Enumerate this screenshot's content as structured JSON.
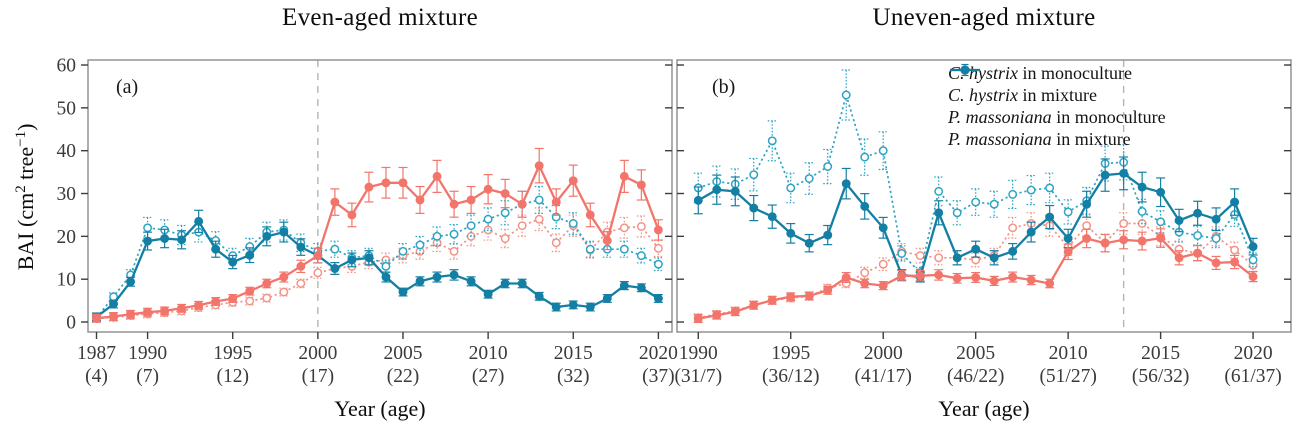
{
  "header": {
    "panel_a_title": "Even-aged mixture",
    "panel_b_title": "Uneven-aged mixture"
  },
  "axes": {
    "ylabel_pre": "BAI (cm",
    "ylabel_sup1": "2",
    "ylabel_mid": " tree",
    "ylabel_sup2": "−1",
    "ylabel_post": ")",
    "xlabel_a": "Year (age)",
    "xlabel_b": "Year (age)",
    "y_ticks": [
      0,
      10,
      20,
      30,
      40,
      50,
      60
    ]
  },
  "legend": {
    "entries": [
      {
        "species": "C. hystrix",
        "context": " in monoculture",
        "variant": "open-dotted",
        "color": "#f29388"
      },
      {
        "species": "C. hystrix",
        "context": " in mixture",
        "variant": "filled-solid",
        "color": "#f2756b"
      },
      {
        "species": "P. massoniana",
        "context": " in monoculture",
        "variant": "open-dotted",
        "color": "#2da4c4"
      },
      {
        "species": "P. massoniana",
        "context": " in mixture",
        "variant": "filled-solid",
        "color": "#147fa4"
      }
    ]
  },
  "style": {
    "frame_color": "#8c8c8c",
    "tick_color": "#3c3c3c",
    "tick_label_color": "#3b3b3b",
    "dashed_line_color": "#b4b4b4"
  },
  "chart_data": [
    {
      "type": "line",
      "panel": "a",
      "panel_label": "(a)",
      "title": "Even-aged mixture",
      "xlabel": "Year (age)",
      "ylabel": "BAI (cm2 tree-1)",
      "xlim": [
        1986.5,
        2020.8
      ],
      "ylim": [
        -2.33,
        61.17
      ],
      "grid": false,
      "x_start": 1987,
      "dashed_vline_year": 2000,
      "error_bar": {
        "scale": 0.11,
        "min": 0.9
      },
      "x_ticks": [
        {
          "year": 1987,
          "label": "1987",
          "age": "(4)"
        },
        {
          "year": 1990,
          "label": "1990",
          "age": "(7)"
        },
        {
          "year": 1995,
          "label": "1995",
          "age": "(12)"
        },
        {
          "year": 2000,
          "label": "2000",
          "age": "(17)"
        },
        {
          "year": 2005,
          "label": "2005",
          "age": "(22)"
        },
        {
          "year": 2010,
          "label": "2010",
          "age": "(27)"
        },
        {
          "year": 2015,
          "label": "2015",
          "age": "(32)"
        },
        {
          "year": 2020,
          "label": "2020",
          "age": "(37)"
        }
      ],
      "series": [
        {
          "name": "C. hystrix in monoculture",
          "style": "dotted",
          "marker": "open",
          "color": "#f29388",
          "values": [
            0.8,
            1.1,
            1.5,
            1.9,
            2.2,
            2.6,
            3.4,
            4.0,
            4.6,
            4.9,
            5.6,
            7.0,
            9.0,
            11.5,
            12.5,
            13.0,
            14.0,
            14.5,
            15.5,
            16.5,
            18.5,
            16.5,
            20.0,
            21.5,
            19.5,
            22.5,
            24.0,
            18.5,
            22.5,
            16.8,
            21.0,
            22.0,
            22.3,
            17.2
          ]
        },
        {
          "name": "P. massoniana in monoculture",
          "style": "dotted",
          "marker": "open",
          "color": "#2da4c4",
          "values": [
            1.0,
            5.9,
            11.0,
            22.0,
            21.5,
            20.3,
            21.0,
            19.0,
            15.5,
            17.6,
            21.0,
            21.5,
            18.5,
            16.5,
            17.0,
            15.0,
            15.5,
            13.0,
            16.5,
            18.0,
            20.0,
            20.5,
            22.5,
            24.0,
            25.5,
            27.5,
            28.5,
            24.5,
            23.0,
            17.0,
            17.0,
            17.0,
            15.5,
            13.5
          ]
        },
        {
          "name": "P. massoniana in mixture",
          "style": "solid",
          "marker": "filled",
          "color": "#147fa4",
          "values": [
            1.2,
            4.2,
            9.4,
            18.9,
            19.5,
            19.2,
            23.5,
            17.0,
            14.0,
            15.6,
            20.0,
            21.0,
            17.5,
            15.5,
            12.5,
            14.5,
            15.0,
            10.5,
            7.0,
            9.5,
            10.5,
            11.0,
            9.5,
            6.5,
            9.0,
            9.0,
            6.0,
            3.5,
            4.0,
            3.5,
            5.5,
            8.5,
            8.0,
            5.5
          ]
        },
        {
          "name": "C. hystrix in mixture",
          "style": "solid",
          "marker": "filled",
          "color": "#f2756b",
          "values": [
            0.9,
            1.3,
            1.8,
            2.3,
            2.6,
            3.2,
            3.9,
            4.8,
            5.5,
            7.2,
            9.0,
            10.5,
            13.0,
            15.5,
            28.0,
            25.0,
            31.5,
            32.5,
            32.5,
            28.5,
            34.0,
            27.5,
            28.5,
            31.0,
            30.0,
            27.5,
            36.5,
            28.0,
            33.0,
            25.0,
            19.0,
            34.0,
            32.0,
            21.5
          ]
        }
      ]
    },
    {
      "type": "line",
      "panel": "b",
      "panel_label": "(b)",
      "title": "Uneven-aged mixture",
      "xlabel": "Year (age)",
      "ylabel": "BAI (cm2 tree-1)",
      "xlim": [
        1988.85,
        2022.05
      ],
      "ylim": [
        -2.33,
        61.17
      ],
      "grid": false,
      "x_start": 1990,
      "dashed_vline_year": 2013,
      "error_bar": {
        "scale": 0.11,
        "min": 0.9
      },
      "x_ticks": [
        {
          "year": 1990,
          "label": "1990",
          "age": "(31/7)"
        },
        {
          "year": 1995,
          "label": "1995",
          "age": "(36/12)"
        },
        {
          "year": 2000,
          "label": "2000",
          "age": "(41/17)"
        },
        {
          "year": 2005,
          "label": "2005",
          "age": "(46/22)"
        },
        {
          "year": 2010,
          "label": "2010",
          "age": "(51/27)"
        },
        {
          "year": 2015,
          "label": "2015",
          "age": "(56/32)"
        },
        {
          "year": 2020,
          "label": "2020",
          "age": "(61/37)"
        }
      ],
      "series": [
        {
          "name": "C. hystrix in monoculture",
          "style": "dotted",
          "marker": "open",
          "color": "#f29388",
          "values": [
            1.0,
            1.8,
            2.6,
            4.0,
            5.0,
            5.6,
            6.0,
            7.9,
            9.0,
            11.5,
            13.5,
            16.5,
            15.5,
            15.0,
            15.0,
            14.5,
            15.5,
            22.0,
            23.0,
            22.5,
            17.5,
            22.5,
            18.5,
            23.0,
            23.0,
            20.0,
            17.0,
            16.0,
            20.0,
            16.8,
            13.3
          ]
        },
        {
          "name": "P. massoniana in monoculture",
          "style": "dotted",
          "marker": "open",
          "color": "#2da4c4",
          "values": [
            31.3,
            32.8,
            32.2,
            34.4,
            42.3,
            31.3,
            33.5,
            36.3,
            53.0,
            38.5,
            40.0,
            16.0,
            11.5,
            30.5,
            25.5,
            28.0,
            27.5,
            29.8,
            30.8,
            31.3,
            25.7,
            28.3,
            37.0,
            37.3,
            25.8,
            23.4,
            21.0,
            20.2,
            19.5,
            25.1,
            14.5
          ]
        },
        {
          "name": "P. massoniana in mixture",
          "style": "solid",
          "marker": "filled",
          "color": "#147fa4",
          "values": [
            28.4,
            30.9,
            30.5,
            26.6,
            24.6,
            20.7,
            18.4,
            20.3,
            32.3,
            27.0,
            22.0,
            11.0,
            10.5,
            25.5,
            15.0,
            17.0,
            15.0,
            16.5,
            21.0,
            24.5,
            19.5,
            27.5,
            34.3,
            34.7,
            31.5,
            30.3,
            23.7,
            25.4,
            24.0,
            28.0,
            17.6
          ]
        },
        {
          "name": "C. hystrix in mixture",
          "style": "solid",
          "marker": "filled",
          "color": "#f2756b",
          "values": [
            0.8,
            1.6,
            2.4,
            3.9,
            5.1,
            5.9,
            6.1,
            7.4,
            10.4,
            9.0,
            8.5,
            10.8,
            10.8,
            11.0,
            10.2,
            10.4,
            9.6,
            10.5,
            9.8,
            9.0,
            16.4,
            19.5,
            18.4,
            19.2,
            18.9,
            19.6,
            15.0,
            16.1,
            13.8,
            14.0,
            10.6
          ]
        }
      ]
    }
  ]
}
